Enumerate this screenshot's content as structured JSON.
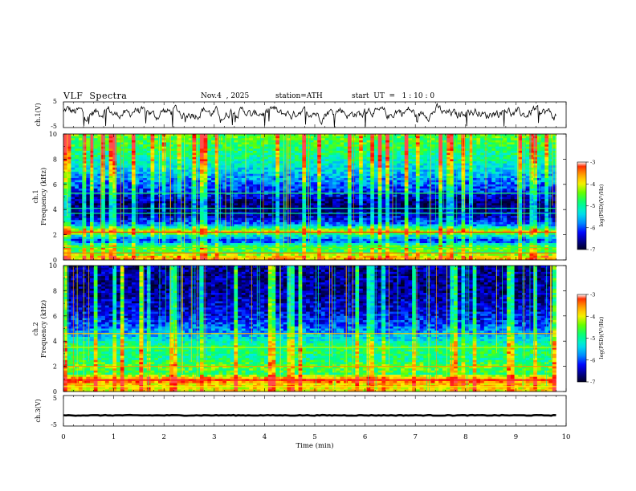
{
  "header": {
    "title": "VLF  Spectra",
    "date": "Nov.4  , 2025",
    "station": "station=ATH",
    "start": "start  UT  =   1 : 10 : 0"
  },
  "chart_data": {
    "type": "spectrogram",
    "x": {
      "label": "Time  (min)",
      "range": [
        0,
        10
      ],
      "ticks": [
        "0",
        "1",
        "2",
        "3",
        "4",
        "5",
        "6",
        "7",
        "8",
        "9",
        "10"
      ],
      "data_end": 9.8
    },
    "ch1": {
      "label": "ch.1(V)",
      "ylim": [
        -5,
        5
      ],
      "ticks": [
        "5",
        "-5"
      ],
      "baseline": 0.8,
      "amplitude": 2.6
    },
    "spec1": {
      "ylabel_channel": "ch.1",
      "ylabel": "Frequency  (kHz)",
      "ylim": [
        0,
        10
      ],
      "ticks": [
        "0",
        "2",
        "4",
        "6",
        "8",
        "10"
      ],
      "profile": [
        {
          "f": 0.2,
          "v": 0.8
        },
        {
          "f": 0.6,
          "v": 0.55
        },
        {
          "f": 1.0,
          "v": 0.62
        },
        {
          "f": 1.5,
          "v": 0.22
        },
        {
          "f": 2.0,
          "v": 0.45
        },
        {
          "f": 2.2,
          "v": 0.78
        },
        {
          "f": 2.8,
          "v": 0.28
        },
        {
          "f": 3.5,
          "v": 0.12
        },
        {
          "f": 4.5,
          "v": 0.06
        },
        {
          "f": 5.2,
          "v": 0.18
        },
        {
          "f": 6.5,
          "v": 0.32
        },
        {
          "f": 8.0,
          "v": 0.48
        },
        {
          "f": 10.0,
          "v": 0.62
        }
      ],
      "lines": [
        {
          "f": 2.2,
          "v": 0.92
        },
        {
          "f": 0.55,
          "v": 0.88
        },
        {
          "f": 1.0,
          "v": 0.6
        },
        {
          "f": 5.3,
          "v": 0.55
        },
        {
          "f": 4.1,
          "v": 0.5
        },
        {
          "f": 3.7,
          "v": 0.5
        }
      ]
    },
    "spec2": {
      "ylabel_channel": "ch.2",
      "ylabel": "Frequency  (kHz)",
      "ylim": [
        0,
        10
      ],
      "ticks": [
        "0",
        "2",
        "4",
        "6",
        "8",
        "10"
      ],
      "profile": [
        {
          "f": 0.2,
          "v": 0.75
        },
        {
          "f": 0.6,
          "v": 0.78
        },
        {
          "f": 0.9,
          "v": 0.95
        },
        {
          "f": 1.4,
          "v": 0.55
        },
        {
          "f": 2.0,
          "v": 0.62
        },
        {
          "f": 2.6,
          "v": 0.5
        },
        {
          "f": 3.5,
          "v": 0.55
        },
        {
          "f": 4.2,
          "v": 0.4
        },
        {
          "f": 4.8,
          "v": 0.3
        },
        {
          "f": 5.5,
          "v": 0.22
        },
        {
          "f": 6.5,
          "v": 0.15
        },
        {
          "f": 8.0,
          "v": 0.1
        },
        {
          "f": 10.0,
          "v": 0.1
        }
      ],
      "lines": [
        {
          "f": 0.9,
          "v": 0.97
        },
        {
          "f": 2.0,
          "v": 0.85
        },
        {
          "f": 4.6,
          "v": 0.8
        },
        {
          "f": 3.5,
          "v": 0.7
        },
        {
          "f": 0.4,
          "v": 0.75
        }
      ]
    },
    "ch3": {
      "label": "ch.3(V)",
      "ylim": [
        -5,
        5
      ],
      "ticks": [
        "5",
        "-5"
      ],
      "level": -1.5
    },
    "colorbar1": {
      "label": "log(PSD)(V²/Hz)",
      "ticks": [
        "-3",
        "-4",
        "-5",
        "-6",
        "-7"
      ],
      "range": [
        -7,
        -3
      ]
    },
    "colorbar2": {
      "label": "log(PSD)(V²/Hz)",
      "ticks": [
        "-3",
        "-4",
        "-5",
        "-6",
        "-7"
      ],
      "range": [
        -7,
        -3
      ]
    },
    "colors": {
      "cmap": [
        "#000000",
        "#00007a",
        "#0000ff",
        "#0090ff",
        "#00e8e8",
        "#00ff7f",
        "#60ff00",
        "#fff000",
        "#ff9000",
        "#ff0000",
        "#ffffff"
      ],
      "axis": "#000000"
    }
  }
}
